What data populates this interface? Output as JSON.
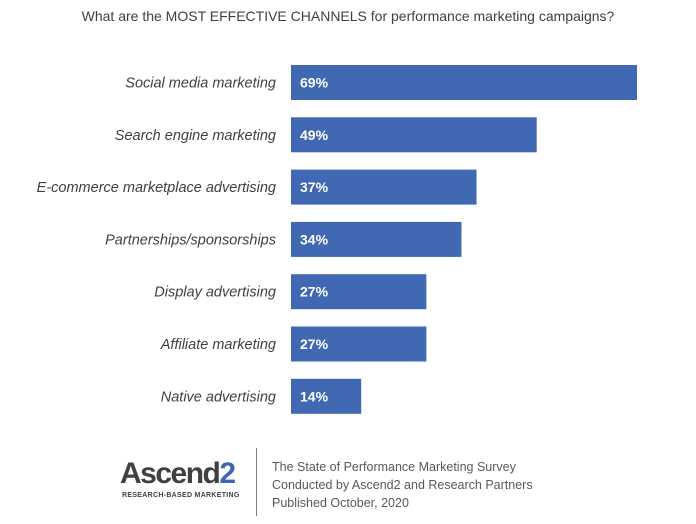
{
  "chart_data": {
    "type": "bar",
    "orientation": "horizontal",
    "title": "What are the MOST EFFECTIVE CHANNELS for performance marketing campaigns?",
    "categories": [
      "Social media marketing",
      "Search engine marketing",
      "E-commerce marketplace advertising",
      "Partnerships/sponsorships",
      "Display advertising",
      "Affiliate marketing",
      "Native advertising"
    ],
    "values": [
      69,
      49,
      37,
      34,
      27,
      27,
      14
    ],
    "value_labels": [
      "69%",
      "49%",
      "37%",
      "34%",
      "27%",
      "27%",
      "14%"
    ],
    "unit": "%",
    "xlim": [
      0,
      69
    ],
    "bar_color": "#4169b3",
    "grid": false,
    "legend": "none"
  },
  "footer": {
    "logo_main": "Ascend",
    "logo_digit": "2",
    "logo_tagline": "RESEARCH-BASED MARKETING",
    "source_line1": "The State of Performance Marketing Survey",
    "source_line2": "Conducted by Ascend2 and Research Partners",
    "source_line3": "Published October, 2020",
    "brand_color": "#3f67b1"
  }
}
